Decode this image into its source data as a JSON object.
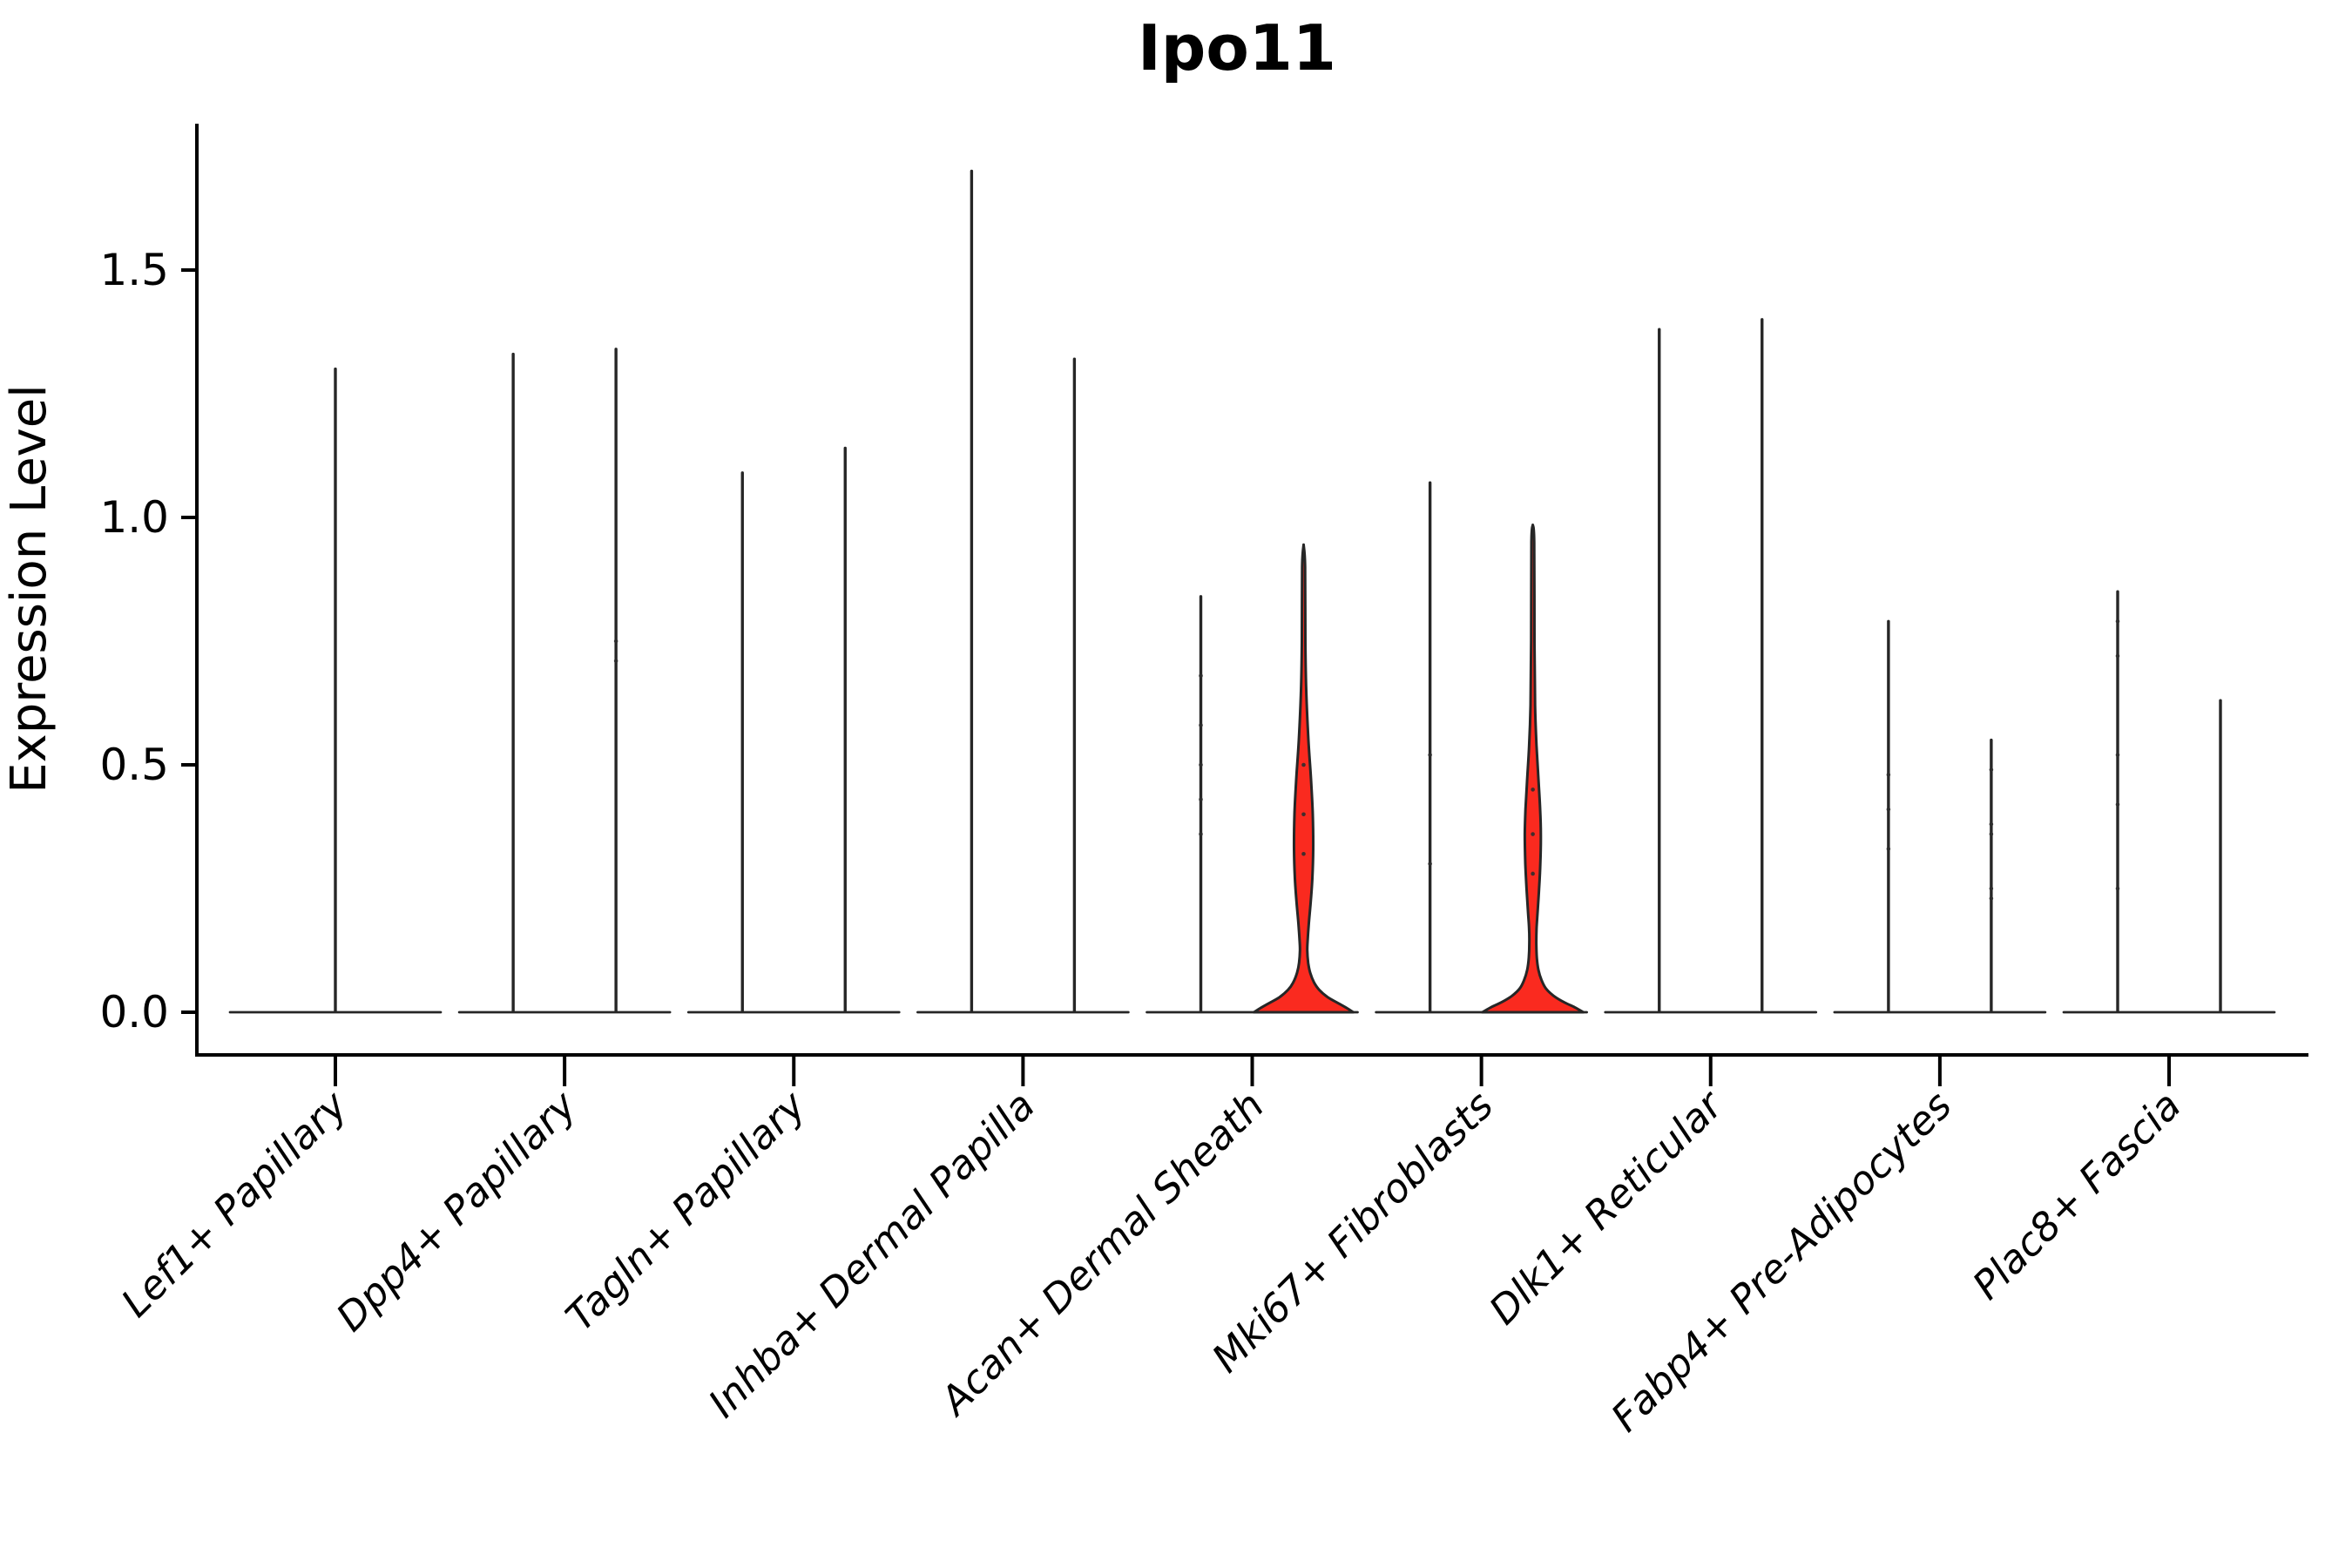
{
  "chart_data": {
    "type": "violin",
    "title": "Ipo11",
    "ylabel": "Expression Level",
    "xlabel": "",
    "ylim": [
      0,
      1.8
    ],
    "yticks": [
      0.0,
      0.5,
      1.0,
      1.5
    ],
    "ytick_labels": [
      "0.0",
      "0.5",
      "1.0",
      "1.5"
    ],
    "grid": false,
    "legend": "none",
    "line_color": "#262626",
    "spine_color": "#000000",
    "highlight_fill": "#fa2a1f",
    "categories": [
      {
        "label": "Lef1+ Papillary",
        "violins": [
          {
            "position": "center",
            "max_expression": 1.3,
            "style": "spike"
          }
        ]
      },
      {
        "label": "Dpp4+ Papillary",
        "violins": [
          {
            "position": "left",
            "max_expression": 1.33,
            "style": "spike"
          },
          {
            "position": "right",
            "max_expression": 1.34,
            "style": "spike",
            "dots": [
              0.75,
              0.71
            ]
          }
        ]
      },
      {
        "label": "Tagln+ Papillary",
        "violins": [
          {
            "position": "left",
            "max_expression": 1.09,
            "style": "spike"
          },
          {
            "position": "right",
            "max_expression": 1.14,
            "style": "spike"
          }
        ]
      },
      {
        "label": "Inhba+ Dermal Papilla",
        "violins": [
          {
            "position": "left",
            "max_expression": 1.7,
            "style": "spike"
          },
          {
            "position": "right",
            "max_expression": 1.32,
            "style": "spike"
          }
        ]
      },
      {
        "label": "Acan+ Dermal Sheath",
        "violins": [
          {
            "position": "left",
            "max_expression": 0.84,
            "style": "spike",
            "dots": [
              0.68,
              0.58,
              0.5,
              0.43,
              0.36
            ]
          },
          {
            "position": "right",
            "max_expression": 0.945,
            "style": "violin",
            "filled": true,
            "dots": [
              0.5,
              0.4,
              0.32
            ],
            "profile": [
              [
                0.945,
                0
              ],
              [
                0.9,
                1.7
              ],
              [
                0.75,
                2.0
              ],
              [
                0.65,
                3.0
              ],
              [
                0.55,
                5.5
              ],
              [
                0.47,
                8.5
              ],
              [
                0.4,
                10.5
              ],
              [
                0.33,
                11.0
              ],
              [
                0.27,
                10.0
              ],
              [
                0.22,
                8.0
              ],
              [
                0.18,
                6.0
              ],
              [
                0.15,
                4.8
              ],
              [
                0.125,
                4.2
              ],
              [
                0.1,
                5.2
              ],
              [
                0.08,
                7.5
              ],
              [
                0.06,
                12
              ],
              [
                0.045,
                18
              ],
              [
                0.03,
                28
              ],
              [
                0.018,
                40
              ],
              [
                0.008,
                50
              ],
              [
                0.0,
                57
              ]
            ]
          }
        ]
      },
      {
        "label": "Mki67+ Fibroblasts",
        "violins": [
          {
            "position": "left",
            "max_expression": 1.07,
            "style": "spike",
            "dots": [
              0.52,
              0.3
            ]
          },
          {
            "position": "right",
            "max_expression": 0.985,
            "style": "violin",
            "filled": true,
            "dots": [
              0.45,
              0.36,
              0.28
            ],
            "profile": [
              [
                0.985,
                0
              ],
              [
                0.95,
                1.6
              ],
              [
                0.75,
                1.9
              ],
              [
                0.62,
                2.6
              ],
              [
                0.54,
                4.2
              ],
              [
                0.47,
                6.5
              ],
              [
                0.41,
                8.4
              ],
              [
                0.36,
                9.2
              ],
              [
                0.3,
                8.6
              ],
              [
                0.25,
                7.2
              ],
              [
                0.2,
                5.4
              ],
              [
                0.17,
                4.3
              ],
              [
                0.14,
                4.0
              ],
              [
                0.11,
                4.6
              ],
              [
                0.085,
                6.5
              ],
              [
                0.065,
                10
              ],
              [
                0.048,
                15
              ],
              [
                0.033,
                24
              ],
              [
                0.02,
                36
              ],
              [
                0.01,
                48
              ],
              [
                0.0,
                58
              ]
            ]
          }
        ]
      },
      {
        "label": "Dlk1+ Reticular",
        "violins": [
          {
            "position": "left",
            "max_expression": 1.38,
            "style": "spike"
          },
          {
            "position": "right",
            "max_expression": 1.4,
            "style": "spike"
          }
        ]
      },
      {
        "label": "Fabp4+ Pre-Adipocytes",
        "violins": [
          {
            "position": "left",
            "max_expression": 0.79,
            "style": "spike",
            "dots": [
              0.48,
              0.41,
              0.33
            ]
          },
          {
            "position": "right",
            "max_expression": 0.55,
            "style": "spike",
            "dots": [
              0.49,
              0.38,
              0.36,
              0.25,
              0.23
            ]
          }
        ]
      },
      {
        "label": "Plac8+ Fascia",
        "violins": [
          {
            "position": "left",
            "max_expression": 0.85,
            "style": "spike",
            "dots": [
              0.79,
              0.72,
              0.52,
              0.42,
              0.25
            ]
          },
          {
            "position": "right",
            "max_expression": 0.63,
            "style": "spike"
          }
        ]
      }
    ]
  }
}
